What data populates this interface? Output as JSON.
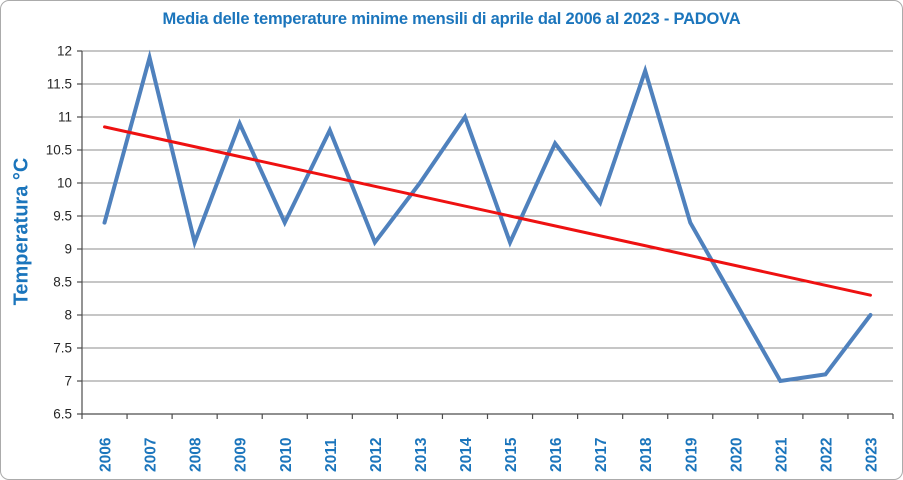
{
  "chart_data": {
    "type": "line",
    "title": "Media delle temperature minime mensili di aprile dal 2006 al 2023 - PADOVA",
    "ylabel": "Temperatura °C",
    "xlabel": "",
    "categories": [
      "2006",
      "2007",
      "2008",
      "2009",
      "2010",
      "2011",
      "2012",
      "2013",
      "2014",
      "2015",
      "2016",
      "2017",
      "2018",
      "2019",
      "2020",
      "2021",
      "2022",
      "2023"
    ],
    "series": [
      {
        "name": "temperatura-minima-media",
        "color": "#4F81BD",
        "stroke_width": 4,
        "values": [
          9.4,
          11.9,
          9.1,
          10.9,
          9.4,
          10.8,
          9.1,
          10.0,
          11.0,
          9.1,
          10.6,
          9.7,
          11.7,
          9.4,
          8.2,
          7.0,
          7.1,
          8.0
        ]
      },
      {
        "name": "linea-di-tendenza",
        "color": "#EE1111",
        "stroke_width": 3,
        "trend": true,
        "values": [
          10.85,
          8.3
        ]
      }
    ],
    "ylim": [
      6.5,
      12
    ],
    "ytick_step": 0.5,
    "grid": "horizontal",
    "legend": "none",
    "colors": {
      "title": "#1B75BC",
      "axis_labels": "#1B75BC",
      "tick_labels": "#262626",
      "gridline": "#8C8C8C",
      "axis_line": "#4D4D4D",
      "background": "#FFFFFF",
      "border": "#ABABAB"
    }
  }
}
